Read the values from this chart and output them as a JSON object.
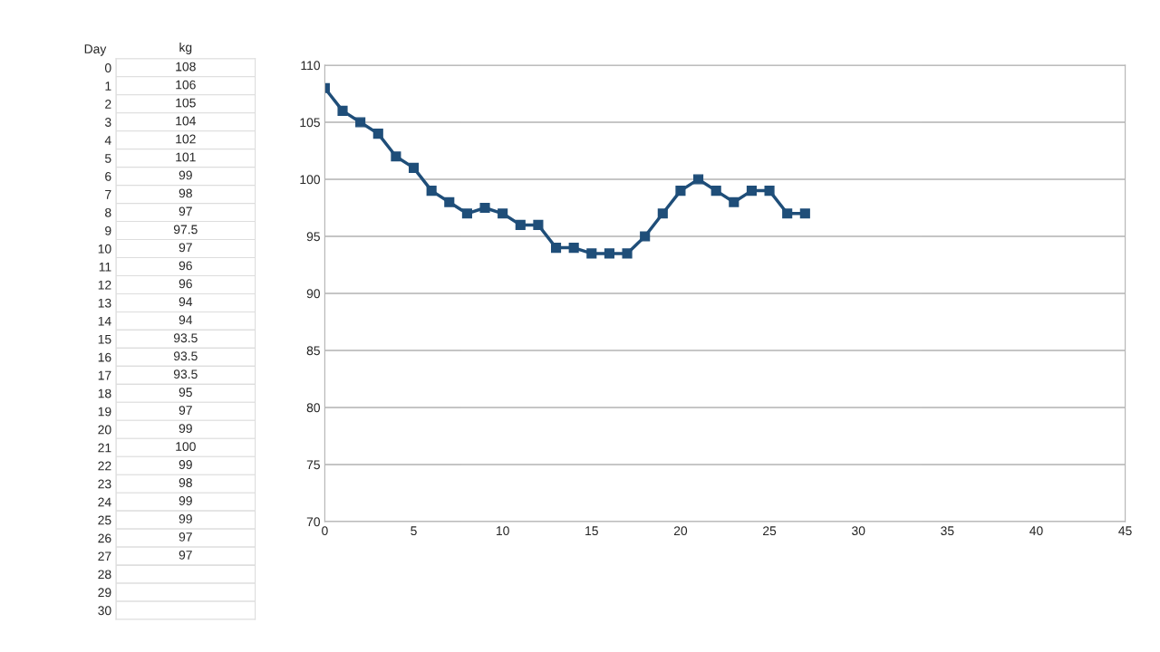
{
  "chart_data": [
    {
      "type": "heatmap",
      "ylabel": "Day",
      "data_labels": true,
      "categories": [
        "kg"
      ],
      "y_categories": [
        "0",
        "1",
        "2",
        "3",
        "4",
        "5",
        "6",
        "7",
        "8",
        "9",
        "10",
        "11",
        "12",
        "13",
        "14",
        "15",
        "16",
        "17",
        "18",
        "19",
        "20",
        "21",
        "22",
        "23",
        "24",
        "25",
        "26",
        "27",
        "28",
        "29",
        "30"
      ],
      "cells": [
        [
          108
        ],
        [
          106
        ],
        [
          105
        ],
        [
          104
        ],
        [
          102
        ],
        [
          101
        ],
        [
          99
        ],
        [
          98
        ],
        [
          97
        ],
        [
          97.5
        ],
        [
          97
        ],
        [
          96
        ],
        [
          96
        ],
        [
          94
        ],
        [
          94
        ],
        [
          93.5
        ],
        [
          93.5
        ],
        [
          93.5
        ],
        [
          95
        ],
        [
          97
        ],
        [
          99
        ],
        [
          100
        ],
        [
          99
        ],
        [
          98
        ],
        [
          99
        ],
        [
          99
        ],
        [
          97
        ],
        [
          97
        ],
        [
          null
        ],
        [
          null
        ],
        [
          null
        ]
      ]
    },
    {
      "type": "line",
      "x": [
        0,
        1,
        2,
        3,
        4,
        5,
        6,
        7,
        8,
        9,
        10,
        11,
        12,
        13,
        14,
        15,
        16,
        17,
        18,
        19,
        20,
        21,
        22,
        23,
        24,
        25,
        26,
        27
      ],
      "series": [
        {
          "color": "#1f4e79",
          "values": [
            108,
            106,
            105,
            104,
            102,
            101,
            99,
            98,
            97,
            97.5,
            97,
            96,
            96,
            94,
            94,
            93.5,
            93.5,
            93.5,
            95,
            97,
            99,
            100,
            99,
            98,
            99,
            99,
            97,
            97
          ]
        }
      ],
      "marker": "square",
      "line_style": "solid",
      "grid": "y",
      "xlim": [
        0,
        45
      ],
      "xticks": [
        0,
        5,
        10,
        15,
        20,
        25,
        30,
        35,
        40,
        45
      ],
      "ylim": [
        70,
        110
      ],
      "yticks": [
        70,
        75,
        80,
        85,
        90,
        95,
        100,
        105,
        110
      ]
    }
  ]
}
